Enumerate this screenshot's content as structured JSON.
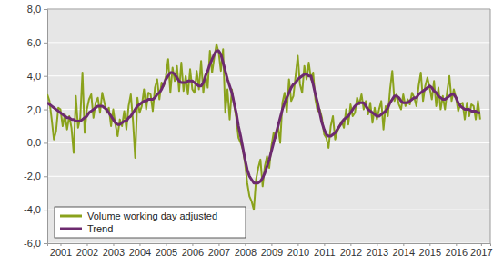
{
  "chart_data": {
    "type": "line",
    "x": [
      2001.0,
      2001.083,
      2001.167,
      2001.25,
      2001.333,
      2001.417,
      2001.5,
      2001.583,
      2001.667,
      2001.75,
      2001.833,
      2001.917,
      2002.0,
      2002.083,
      2002.167,
      2002.25,
      2002.333,
      2002.417,
      2002.5,
      2002.583,
      2002.667,
      2002.75,
      2002.833,
      2002.917,
      2003.0,
      2003.083,
      2003.167,
      2003.25,
      2003.333,
      2003.417,
      2003.5,
      2003.583,
      2003.667,
      2003.75,
      2003.833,
      2003.917,
      2004.0,
      2004.083,
      2004.167,
      2004.25,
      2004.333,
      2004.417,
      2004.5,
      2004.583,
      2004.667,
      2004.75,
      2004.833,
      2004.917,
      2005.0,
      2005.083,
      2005.167,
      2005.25,
      2005.333,
      2005.417,
      2005.5,
      2005.583,
      2005.667,
      2005.75,
      2005.833,
      2005.917,
      2006.0,
      2006.083,
      2006.167,
      2006.25,
      2006.333,
      2006.417,
      2006.5,
      2006.583,
      2006.667,
      2006.75,
      2006.833,
      2006.917,
      2007.0,
      2007.083,
      2007.167,
      2007.25,
      2007.333,
      2007.417,
      2007.5,
      2007.583,
      2007.667,
      2007.75,
      2007.833,
      2007.917,
      2008.0,
      2008.083,
      2008.167,
      2008.25,
      2008.333,
      2008.417,
      2008.5,
      2008.583,
      2008.667,
      2008.75,
      2008.833,
      2008.917,
      2009.0,
      2009.083,
      2009.167,
      2009.25,
      2009.333,
      2009.417,
      2009.5,
      2009.583,
      2009.667,
      2009.75,
      2009.833,
      2009.917,
      2010.0,
      2010.083,
      2010.167,
      2010.25,
      2010.333,
      2010.417,
      2010.5,
      2010.583,
      2010.667,
      2010.75,
      2010.833,
      2010.917,
      2011.0,
      2011.083,
      2011.167,
      2011.25,
      2011.333,
      2011.417,
      2011.5,
      2011.583,
      2011.667,
      2011.75,
      2011.833,
      2011.917,
      2012.0,
      2012.083,
      2012.167,
      2012.25,
      2012.333,
      2012.417,
      2012.5,
      2012.583,
      2012.667,
      2012.75,
      2012.833,
      2012.917,
      2013.0,
      2013.083,
      2013.167,
      2013.25,
      2013.333,
      2013.417,
      2013.5,
      2013.583,
      2013.667,
      2013.75,
      2013.833,
      2013.917,
      2014.0,
      2014.083,
      2014.167,
      2014.25,
      2014.333,
      2014.417,
      2014.5,
      2014.583,
      2014.667,
      2014.75,
      2014.833,
      2014.917,
      2015.0,
      2015.083,
      2015.167,
      2015.25,
      2015.333,
      2015.417,
      2015.5,
      2015.583,
      2015.667,
      2015.75,
      2015.833,
      2015.917,
      2016.0,
      2016.083,
      2016.167,
      2016.25,
      2016.333,
      2016.417,
      2016.5,
      2016.583,
      2016.667,
      2016.75,
      2016.833,
      2016.917,
      2017.0,
      2017.083,
      2017.167,
      2017.25,
      2017.333,
      2017.417
    ],
    "series": [
      {
        "name": "Volume working day adjusted",
        "color": "#8aa21c",
        "values": [
          2.9,
          2.5,
          1.4,
          0.2,
          0.7,
          2.1,
          2.0,
          1.0,
          1.7,
          0.8,
          1.6,
          0.9,
          -0.6,
          2.8,
          0.9,
          1.5,
          4.2,
          0.6,
          2.0,
          2.6,
          2.9,
          1.5,
          2.4,
          2.7,
          1.8,
          3.0,
          2.4,
          1.8,
          2.1,
          1.0,
          2.0,
          1.1,
          0.4,
          1.4,
          1.0,
          1.9,
          0.8,
          2.2,
          2.9,
          1.3,
          -0.9,
          2.7,
          1.8,
          2.2,
          3.2,
          2.0,
          3.0,
          2.9,
          1.9,
          3.3,
          3.8,
          2.6,
          3.6,
          3.4,
          4.0,
          5.0,
          3.0,
          4.5,
          3.7,
          4.6,
          3.1,
          4.8,
          3.1,
          4.0,
          2.9,
          4.4,
          3.2,
          3.0,
          4.3,
          3.2,
          4.9,
          3.0,
          4.1,
          3.3,
          5.5,
          4.2,
          5.1,
          5.9,
          5.4,
          4.3,
          5.6,
          1.8,
          3.2,
          1.4,
          3.2,
          2.3,
          1.5,
          0.3,
          0.0,
          -0.4,
          -1.2,
          -2.4,
          -3.2,
          -3.5,
          -4.0,
          -2.2,
          -1.5,
          -1.0,
          -2.6,
          -1.4,
          -0.8,
          -1.5,
          -0.2,
          0.6,
          0.3,
          1.0,
          0.0,
          2.4,
          3.0,
          1.8,
          3.8,
          2.5,
          2.8,
          4.0,
          5.2,
          3.5,
          3.0,
          4.6,
          3.8,
          4.8,
          3.8,
          4.2,
          2.6,
          1.9,
          2.0,
          1.5,
          0.5,
          0.3,
          -0.3,
          1.0,
          1.6,
          0.2,
          0.7,
          1.0,
          1.3,
          0.9,
          2.0,
          1.1,
          2.3,
          1.6,
          1.8,
          2.7,
          2.3,
          2.9,
          2.0,
          2.5,
          1.7,
          2.4,
          1.2,
          2.1,
          1.4,
          2.0,
          2.5,
          0.8,
          2.2,
          1.6,
          3.2,
          4.3,
          2.5,
          2.9,
          2.3,
          2.0,
          2.9,
          2.2,
          2.6,
          2.3,
          3.0,
          2.7,
          2.2,
          3.4,
          4.2,
          2.5,
          3.4,
          3.9,
          3.3,
          2.6,
          3.7,
          2.2,
          3.3,
          2.0,
          2.8,
          2.0,
          3.1,
          4.0,
          2.5,
          3.2,
          2.7,
          1.9,
          2.3,
          2.4,
          1.4,
          2.4,
          1.6,
          2.3,
          2.2,
          1.4,
          2.5,
          1.4
        ]
      },
      {
        "name": "Trend",
        "color": "#6d2a6f",
        "values": [
          2.4,
          2.3,
          2.2,
          2.1,
          2.0,
          1.9,
          1.8,
          1.7,
          1.6,
          1.5,
          1.5,
          1.4,
          1.4,
          1.3,
          1.3,
          1.3,
          1.4,
          1.5,
          1.6,
          1.8,
          1.9,
          2.0,
          2.1,
          2.2,
          2.2,
          2.2,
          2.1,
          2.0,
          1.8,
          1.6,
          1.4,
          1.2,
          1.1,
          1.1,
          1.2,
          1.3,
          1.3,
          1.5,
          1.6,
          1.8,
          2.0,
          2.2,
          2.3,
          2.4,
          2.5,
          2.5,
          2.6,
          2.6,
          2.6,
          2.7,
          2.9,
          3.0,
          3.2,
          3.5,
          3.8,
          4.0,
          4.2,
          4.2,
          4.1,
          3.9,
          3.7,
          3.6,
          3.6,
          3.6,
          3.7,
          3.7,
          3.7,
          3.6,
          3.5,
          3.4,
          3.4,
          3.6,
          4.0,
          4.3,
          4.7,
          5.0,
          5.3,
          5.5,
          5.5,
          5.3,
          4.8,
          4.3,
          3.8,
          3.4,
          3.0,
          2.4,
          1.8,
          1.0,
          0.4,
          -0.3,
          -1.0,
          -1.6,
          -2.0,
          -2.2,
          -2.4,
          -2.4,
          -2.4,
          -2.3,
          -2.1,
          -1.8,
          -1.4,
          -1.0,
          -0.5,
          0.0,
          0.5,
          1.0,
          1.5,
          2.0,
          2.4,
          2.7,
          3.0,
          3.3,
          3.5,
          3.6,
          3.8,
          3.9,
          4.0,
          4.1,
          4.1,
          4.0,
          4.0,
          3.5,
          2.9,
          2.4,
          1.8,
          1.2,
          0.8,
          0.5,
          0.4,
          0.4,
          0.5,
          0.6,
          0.8,
          1.0,
          1.2,
          1.4,
          1.5,
          1.6,
          1.8,
          2.0,
          2.2,
          2.3,
          2.4,
          2.4,
          2.4,
          2.2,
          2.0,
          1.9,
          1.8,
          1.7,
          1.6,
          1.6,
          1.7,
          1.8,
          1.9,
          2.1,
          2.4,
          2.6,
          2.8,
          2.8,
          2.7,
          2.5,
          2.4,
          2.4,
          2.4,
          2.5,
          2.6,
          2.7,
          2.7,
          2.9,
          3.0,
          3.1,
          3.2,
          3.3,
          3.4,
          3.3,
          3.1,
          3.0,
          2.8,
          2.7,
          2.6,
          2.6,
          2.7,
          2.8,
          2.9,
          2.9,
          2.7,
          2.4,
          2.2,
          2.1,
          2.0,
          2.0,
          2.0,
          1.9,
          1.9,
          1.9,
          1.8,
          1.8
        ]
      }
    ],
    "xlim": [
      2001.0,
      2017.8
    ],
    "xticks": [
      {
        "value": 2001.5,
        "label": "2001"
      },
      {
        "value": 2002.5,
        "label": "2002"
      },
      {
        "value": 2003.5,
        "label": "2003"
      },
      {
        "value": 2004.5,
        "label": "2004"
      },
      {
        "value": 2005.5,
        "label": "2005"
      },
      {
        "value": 2006.5,
        "label": "2006"
      },
      {
        "value": 2007.5,
        "label": "2007"
      },
      {
        "value": 2008.5,
        "label": "2008"
      },
      {
        "value": 2009.5,
        "label": "2009"
      },
      {
        "value": 2010.5,
        "label": "2010"
      },
      {
        "value": 2011.5,
        "label": "2011"
      },
      {
        "value": 2012.5,
        "label": "2012"
      },
      {
        "value": 2013.5,
        "label": "2013"
      },
      {
        "value": 2014.5,
        "label": "2014"
      },
      {
        "value": 2015.5,
        "label": "2015"
      },
      {
        "value": 2016.5,
        "label": "2016"
      },
      {
        "value": 2017.45,
        "label": "2017"
      }
    ],
    "ylim": [
      -6,
      8
    ],
    "yticks": [
      {
        "value": -6,
        "label": "-6,0"
      },
      {
        "value": -4,
        "label": "-4,0"
      },
      {
        "value": -2,
        "label": "-2,0"
      },
      {
        "value": 0,
        "label": "0,0"
      },
      {
        "value": 2,
        "label": "2,0"
      },
      {
        "value": 4,
        "label": "4,0"
      },
      {
        "value": 6,
        "label": "6,0"
      },
      {
        "value": 8,
        "label": "8,0"
      }
    ],
    "grid": true,
    "legend": "lower left"
  }
}
